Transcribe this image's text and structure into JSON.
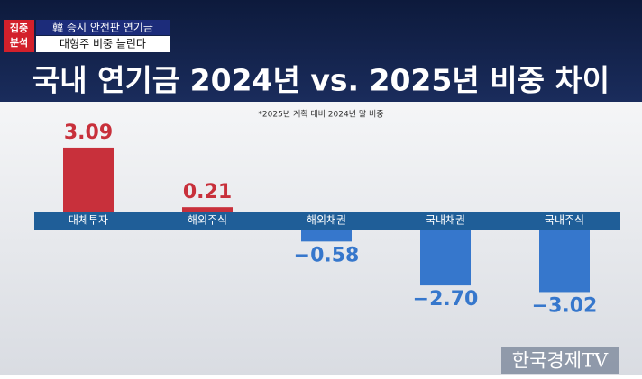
{
  "header": {
    "badge": [
      "집중",
      "분석"
    ],
    "headline": [
      "韓 증시 안전판 연기금",
      "대형주 비중 늘린다"
    ],
    "logo": "한국경제TV"
  },
  "chart_data": {
    "type": "bar",
    "title": "국내 연기금 2024년 vs. 2025년 비중 차이",
    "subtitle": "*2025년 계획 대비 2024년 말 비중",
    "categories": [
      "대체투자",
      "해외주식",
      "해외채권",
      "국내채권",
      "국내주식"
    ],
    "values": [
      3.09,
      0.21,
      -0.58,
      -2.7,
      -3.02
    ],
    "value_labels": [
      "3.09",
      "0.21",
      "−0.58",
      "−2.70",
      "−3.02"
    ],
    "positive_color": "#c8303b",
    "negative_color": "#3677cc"
  }
}
